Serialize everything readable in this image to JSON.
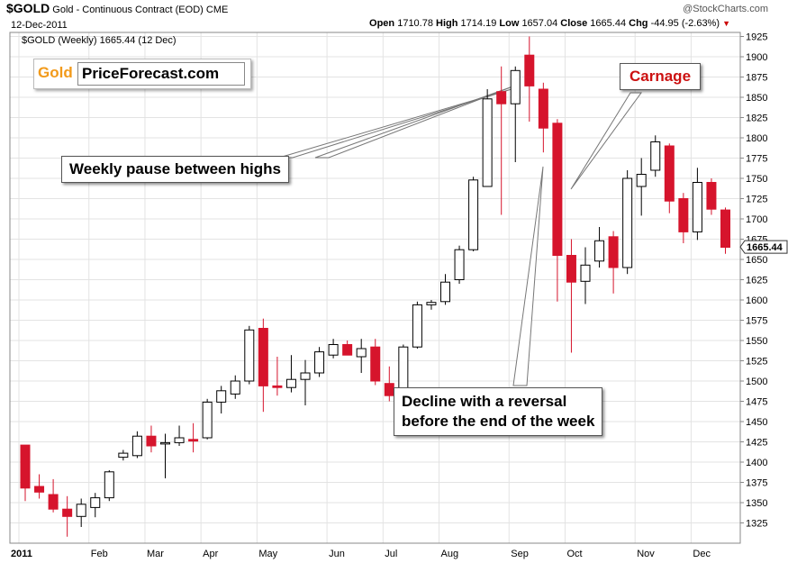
{
  "header": {
    "symbol": "$GOLD",
    "name": "Gold - Continuous Contract (EOD)",
    "exchange": "CME",
    "date": "12-Dec-2011",
    "watermark": "@StockCharts.com",
    "open_label": "Open",
    "open": "1710.78",
    "high_label": "High",
    "high": "1714.19",
    "low_label": "Low",
    "low": "1657.04",
    "close_label": "Close",
    "close": "1665.44",
    "chg_label": "Chg",
    "chg": "-44.95 (-2.63%)"
  },
  "legend": {
    "label": "$GOLD (Weekly) 1665.44 (12 Dec)"
  },
  "logo": {
    "part1": "Gold",
    "part2": "PriceForecast.com"
  },
  "callouts": {
    "pause": "Weekly pause between highs",
    "carnage": "Carnage",
    "decline_line1": "Decline with a reversal",
    "decline_line2": "before the end of the week"
  },
  "colors": {
    "up": "#000000",
    "down": "#d6142c",
    "grid": "#e3e3e3",
    "frame": "#888888"
  },
  "chart_data": {
    "type": "candlestick",
    "title": "$GOLD (Weekly) 1665.44 (12 Dec)",
    "xlabel": "",
    "ylabel": "",
    "ylim": [
      1300,
      1930
    ],
    "y_ticks": [
      1325,
      1350,
      1375,
      1400,
      1425,
      1450,
      1475,
      1500,
      1525,
      1550,
      1575,
      1600,
      1625,
      1650,
      1675,
      1700,
      1725,
      1750,
      1775,
      1800,
      1825,
      1850,
      1875,
      1900,
      1925
    ],
    "x_tick_labels": [
      {
        "label": "2011",
        "week": 0
      },
      {
        "label": "Feb",
        "week": 5
      },
      {
        "label": "Mar",
        "week": 9
      },
      {
        "label": "Apr",
        "week": 13
      },
      {
        "label": "May",
        "week": 17
      },
      {
        "label": "Jun",
        "week": 22
      },
      {
        "label": "Jul",
        "week": 26
      },
      {
        "label": "Aug",
        "week": 30
      },
      {
        "label": "Sep",
        "week": 35
      },
      {
        "label": "Oct",
        "week": 39
      },
      {
        "label": "Nov",
        "week": 44
      },
      {
        "label": "Dec",
        "week": 48
      }
    ],
    "last_value_label": "1665.44",
    "grid": true,
    "candles": [
      {
        "o": 1421,
        "h": 1421,
        "l": 1352,
        "c": 1368
      },
      {
        "o": 1370,
        "h": 1385,
        "l": 1355,
        "c": 1363
      },
      {
        "o": 1360,
        "h": 1379,
        "l": 1338,
        "c": 1342
      },
      {
        "o": 1342,
        "h": 1358,
        "l": 1308,
        "c": 1333
      },
      {
        "o": 1333,
        "h": 1355,
        "l": 1320,
        "c": 1348
      },
      {
        "o": 1344,
        "h": 1362,
        "l": 1332,
        "c": 1356
      },
      {
        "o": 1356,
        "h": 1390,
        "l": 1352,
        "c": 1388
      },
      {
        "o": 1406,
        "h": 1415,
        "l": 1402,
        "c": 1411
      },
      {
        "o": 1408,
        "h": 1438,
        "l": 1405,
        "c": 1432
      },
      {
        "o": 1432,
        "h": 1445,
        "l": 1412,
        "c": 1420
      },
      {
        "o": 1424,
        "h": 1435,
        "l": 1380,
        "c": 1424
      },
      {
        "o": 1424,
        "h": 1445,
        "l": 1420,
        "c": 1430
      },
      {
        "o": 1428,
        "h": 1448,
        "l": 1412,
        "c": 1426
      },
      {
        "o": 1430,
        "h": 1478,
        "l": 1428,
        "c": 1474
      },
      {
        "o": 1474,
        "h": 1494,
        "l": 1460,
        "c": 1488
      },
      {
        "o": 1484,
        "h": 1507,
        "l": 1478,
        "c": 1500
      },
      {
        "o": 1500,
        "h": 1568,
        "l": 1496,
        "c": 1563
      },
      {
        "o": 1565,
        "h": 1577,
        "l": 1462,
        "c": 1494
      },
      {
        "o": 1494,
        "h": 1530,
        "l": 1482,
        "c": 1492
      },
      {
        "o": 1492,
        "h": 1532,
        "l": 1486,
        "c": 1502
      },
      {
        "o": 1502,
        "h": 1526,
        "l": 1470,
        "c": 1510
      },
      {
        "o": 1510,
        "h": 1542,
        "l": 1505,
        "c": 1536
      },
      {
        "o": 1532,
        "h": 1552,
        "l": 1528,
        "c": 1545
      },
      {
        "o": 1545,
        "h": 1550,
        "l": 1532,
        "c": 1532
      },
      {
        "o": 1530,
        "h": 1552,
        "l": 1510,
        "c": 1540
      },
      {
        "o": 1542,
        "h": 1552,
        "l": 1495,
        "c": 1500
      },
      {
        "o": 1497,
        "h": 1518,
        "l": 1475,
        "c": 1482
      },
      {
        "o": 1485,
        "h": 1545,
        "l": 1480,
        "c": 1542
      },
      {
        "o": 1542,
        "h": 1598,
        "l": 1540,
        "c": 1594
      },
      {
        "o": 1594,
        "h": 1600,
        "l": 1588,
        "c": 1597
      },
      {
        "o": 1598,
        "h": 1632,
        "l": 1594,
        "c": 1622
      },
      {
        "o": 1625,
        "h": 1667,
        "l": 1620,
        "c": 1662
      },
      {
        "o": 1662,
        "h": 1752,
        "l": 1660,
        "c": 1748
      },
      {
        "o": 1740,
        "h": 1860,
        "l": 1745,
        "c": 1848
      },
      {
        "o": 1857,
        "h": 1888,
        "l": 1705,
        "c": 1842
      },
      {
        "o": 1842,
        "h": 1888,
        "l": 1770,
        "c": 1883
      },
      {
        "o": 1902,
        "h": 1925,
        "l": 1820,
        "c": 1864
      },
      {
        "o": 1860,
        "h": 1868,
        "l": 1782,
        "c": 1812
      },
      {
        "o": 1818,
        "h": 1823,
        "l": 1598,
        "c": 1655
      },
      {
        "o": 1655,
        "h": 1675,
        "l": 1535,
        "c": 1622
      },
      {
        "o": 1623,
        "h": 1665,
        "l": 1595,
        "c": 1643
      },
      {
        "o": 1648,
        "h": 1690,
        "l": 1640,
        "c": 1673
      },
      {
        "o": 1678,
        "h": 1685,
        "l": 1608,
        "c": 1640
      },
      {
        "o": 1640,
        "h": 1760,
        "l": 1632,
        "c": 1750
      },
      {
        "o": 1740,
        "h": 1775,
        "l": 1704,
        "c": 1755
      },
      {
        "o": 1760,
        "h": 1803,
        "l": 1752,
        "c": 1795
      },
      {
        "o": 1790,
        "h": 1793,
        "l": 1707,
        "c": 1722
      },
      {
        "o": 1725,
        "h": 1732,
        "l": 1670,
        "c": 1684
      },
      {
        "o": 1684,
        "h": 1763,
        "l": 1674,
        "c": 1745
      },
      {
        "o": 1745,
        "h": 1750,
        "l": 1705,
        "c": 1712
      },
      {
        "o": 1711,
        "h": 1714,
        "l": 1657,
        "c": 1665
      }
    ]
  }
}
